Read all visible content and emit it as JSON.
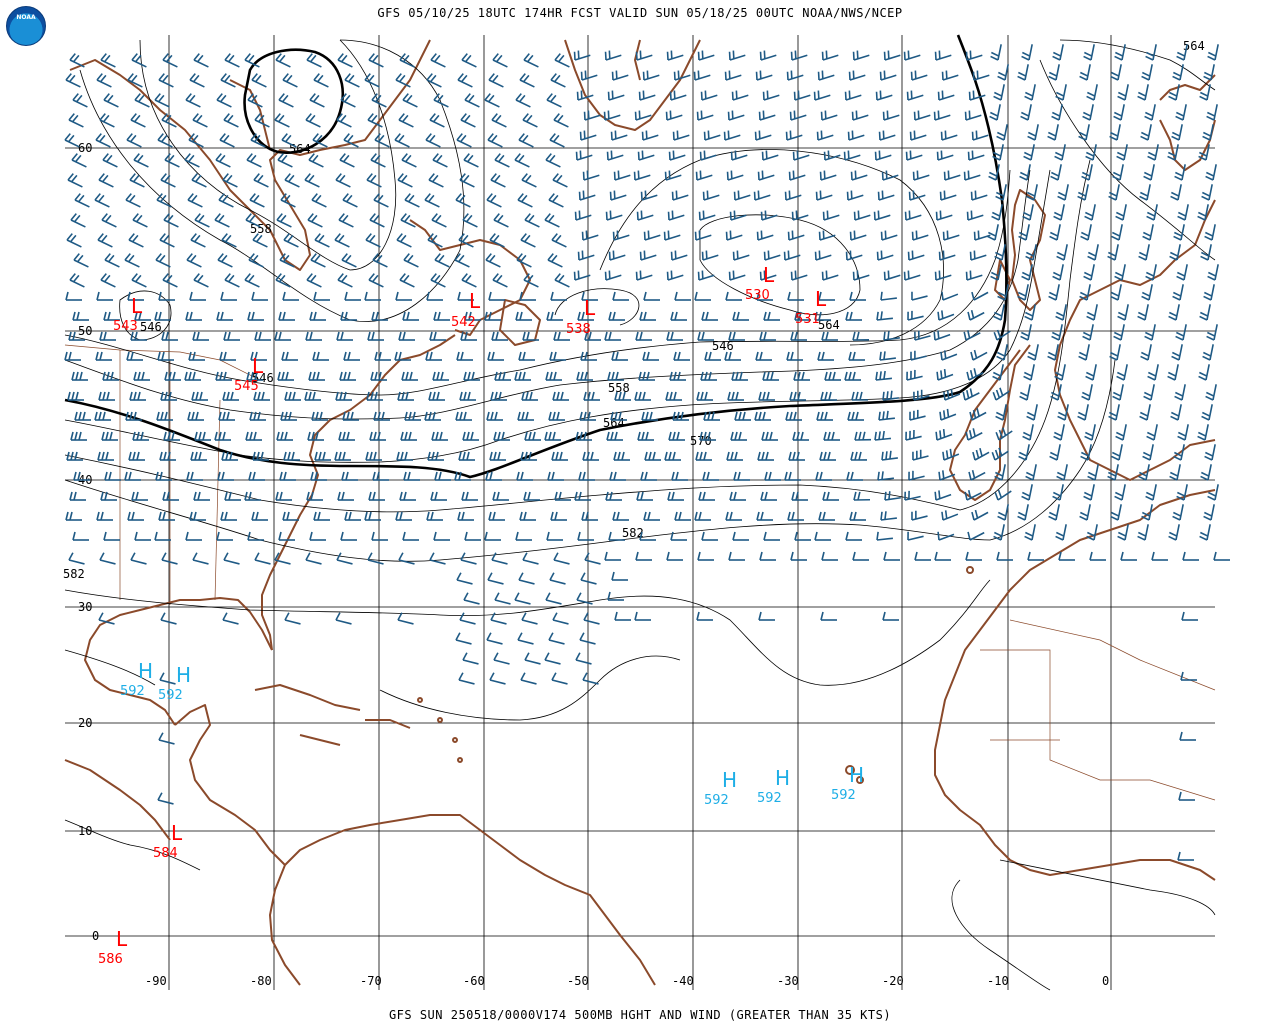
{
  "header": {
    "title": "GFS 05/10/25 18UTC 174HR FCST VALID SUN 05/18/25 00UTC NOAA/NWS/NCEP",
    "footer": "GFS SUN 250518/0000V174 500MB HGHT AND WIND (GREATER THAN 35 KTS)",
    "logo_text": "NOAA"
  },
  "colors": {
    "coast": "#8b4a2b",
    "barb": "#1f5a85",
    "low": "#ff0000",
    "high": "#1eaee6",
    "grid": "#000000"
  },
  "axes": {
    "lat_labels": [
      "60",
      "50",
      "40",
      "30",
      "20",
      "10",
      "0"
    ],
    "lon_labels": [
      "-90",
      "-80",
      "-70",
      "-60",
      "-50",
      "-40",
      "-30",
      "-20",
      "-10",
      "0"
    ]
  },
  "contour_labels": [
    "564",
    "558",
    "546",
    "546",
    "546",
    "558",
    "564",
    "570",
    "582",
    "582",
    "564",
    "564"
  ],
  "lows": [
    {
      "letter": "L",
      "value": "543"
    },
    {
      "letter": "L",
      "value": "545"
    },
    {
      "letter": "L",
      "value": "542"
    },
    {
      "letter": "L",
      "value": "538"
    },
    {
      "letter": "L",
      "value": "530"
    },
    {
      "letter": "L",
      "value": "531"
    },
    {
      "letter": "L",
      "value": "584"
    },
    {
      "letter": "L",
      "value": "586"
    }
  ],
  "highs": [
    {
      "letter": "H",
      "value": "592"
    },
    {
      "letter": "H",
      "value": "592"
    },
    {
      "letter": "H",
      "value": "592"
    },
    {
      "letter": "H",
      "value": "592"
    },
    {
      "letter": "H",
      "value": "592"
    }
  ]
}
